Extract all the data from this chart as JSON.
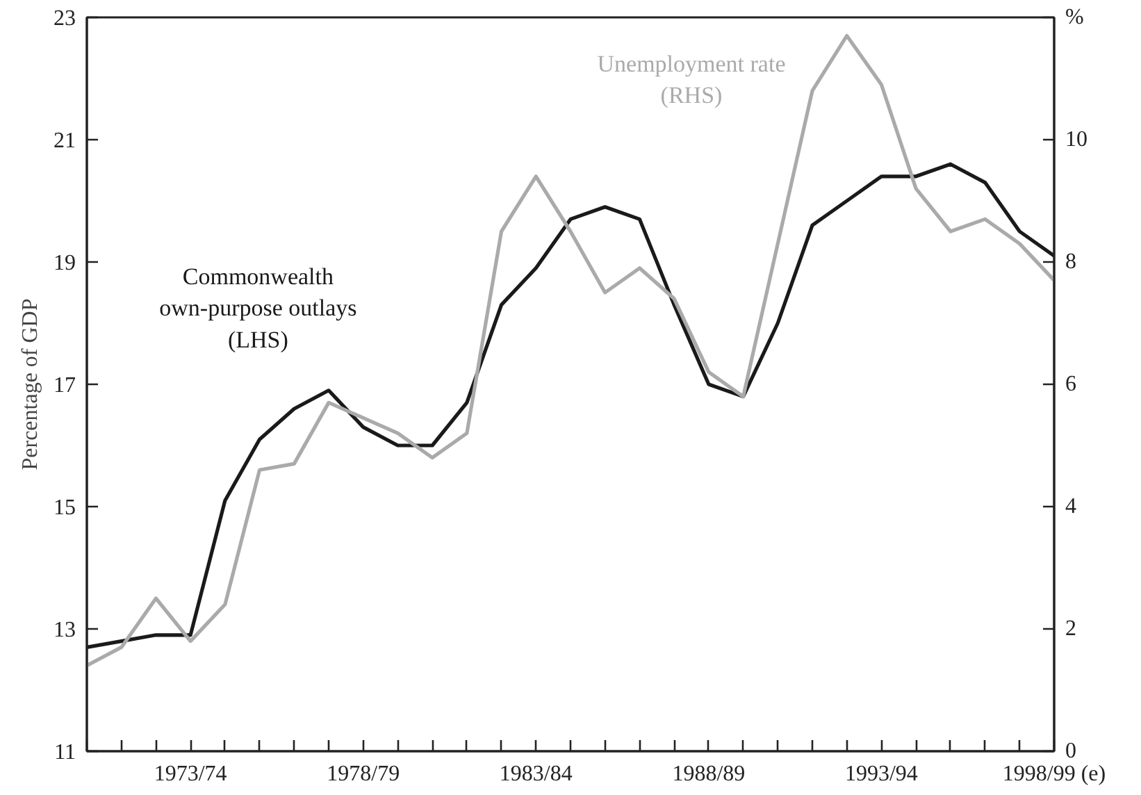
{
  "chart_data": {
    "type": "line",
    "ylabel": "Percentage of GDP",
    "categories": [
      null,
      null,
      null,
      "1973/74",
      null,
      null,
      null,
      null,
      "1978/79",
      null,
      null,
      null,
      null,
      "1983/84",
      null,
      null,
      null,
      null,
      "1988/89",
      null,
      null,
      null,
      null,
      "1993/94",
      null,
      null,
      null,
      null,
      "1998/99 (e)"
    ],
    "series": [
      {
        "name": "Commonwealth\nown-purpose outlays\n(LHS)",
        "color": "#1a1a1a",
        "values": [
          12.7,
          12.8,
          12.9,
          12.9,
          15.1,
          16.1,
          16.6,
          16.9,
          16.3,
          16.0,
          16.0,
          16.7,
          18.3,
          18.9,
          19.7,
          19.9,
          19.7,
          18.3,
          17.0,
          16.8,
          18.0,
          19.6,
          20.0,
          20.4,
          20.4,
          20.6,
          20.3,
          19.5,
          19.1
        ]
      },
      {
        "name": "Unemployment rate\n(RHS)",
        "color": "#aaaaaa",
        "axis": "y2",
        "values": [
          1.4,
          1.7,
          2.5,
          1.8,
          2.4,
          4.6,
          4.7,
          5.7,
          5.45,
          5.2,
          4.8,
          5.2,
          8.5,
          9.4,
          8.5,
          7.5,
          7.9,
          7.4,
          6.2,
          5.8,
          8.3,
          10.8,
          11.7,
          10.9,
          9.2,
          8.5,
          8.7,
          8.3,
          7.7
        ]
      }
    ],
    "ylim": [
      11,
      23
    ],
    "yticks": [
      11,
      13,
      15,
      17,
      19,
      21,
      23
    ],
    "y2lim": [
      0,
      12
    ],
    "y2ticks": [
      0,
      2,
      4,
      6,
      8,
      10,
      {
        "value": 12,
        "label": "%"
      }
    ],
    "grid": false,
    "marker": "none",
    "line_style": "solid"
  }
}
